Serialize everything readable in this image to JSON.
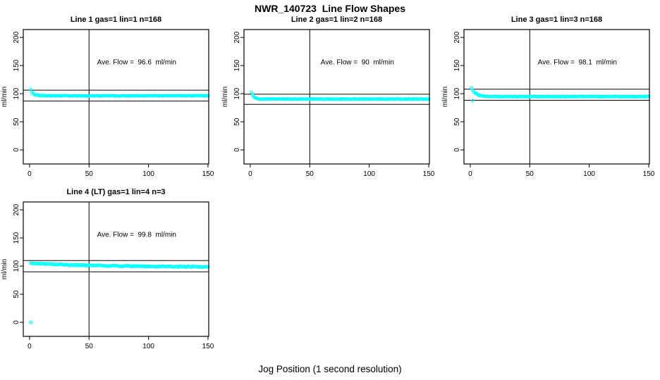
{
  "title": "NWR_140723  Line Flow Shapes",
  "xlabel": "Jog Position (1 second resolution)",
  "colors": {
    "points": "#00FFFF",
    "axis": "#000000",
    "background": "#FFFFFF"
  },
  "axes": {
    "x_ticks": [
      0,
      50,
      100,
      150
    ],
    "y_ticks": [
      0,
      50,
      100,
      150,
      200
    ],
    "xlim": [
      -5.3,
      150.6
    ],
    "ylim": [
      -25,
      214
    ],
    "grid": false
  },
  "chart_data": [
    {
      "type": "scatter",
      "title": "Line 1 gas=1 lin=1 n=168",
      "ylabel": "ml/min",
      "annotation": "Ave. Flow =  96.6  ml/min",
      "ave_flow": 96.6,
      "n": 168,
      "ref_line_upper": 106.3,
      "ref_line_lower": 86.9,
      "vline_x": 50,
      "profile": {
        "start": 107,
        "settle": 96.2,
        "tau": 2.2,
        "noise": 0.5,
        "x_start": 1,
        "x_end": 150,
        "seed": 11
      },
      "sample_points": [
        [
          1,
          107
        ],
        [
          3,
          101
        ],
        [
          5,
          98.4
        ],
        [
          10,
          96.5
        ],
        [
          25,
          96.2
        ],
        [
          50,
          96.2
        ],
        [
          75,
          96.2
        ],
        [
          100,
          96.1
        ],
        [
          125,
          96.2
        ],
        [
          150,
          96.2
        ]
      ],
      "outliers": []
    },
    {
      "type": "scatter",
      "title": "Line 2 gas=1 lin=2 n=168",
      "ylabel": "ml/min",
      "annotation": "Ave. Flow =  90  ml/min",
      "ave_flow": 90,
      "n": 168,
      "ref_line_upper": 99,
      "ref_line_lower": 81,
      "vline_x": 50,
      "profile": {
        "start": 102,
        "settle": 90.4,
        "tau": 1.8,
        "noise": 0.5,
        "x_start": 1,
        "x_end": 150,
        "seed": 22
      },
      "sample_points": [
        [
          1,
          102
        ],
        [
          3,
          94.2
        ],
        [
          5,
          92
        ],
        [
          10,
          90.5
        ],
        [
          25,
          90.4
        ],
        [
          50,
          90.4
        ],
        [
          75,
          90.4
        ],
        [
          100,
          90.4
        ],
        [
          125,
          90.4
        ],
        [
          150,
          90.4
        ]
      ],
      "outliers": []
    },
    {
      "type": "scatter",
      "title": "Line 3 gas=1 lin=3 n=168",
      "ylabel": "ml/min",
      "annotation": "Ave. Flow =  98.1  ml/min",
      "ave_flow": 98.1,
      "n": 168,
      "ref_line_upper": 107.9,
      "ref_line_lower": 88.3,
      "vline_x": 50,
      "profile": {
        "start": 110,
        "settle": 94.8,
        "tau": 3.5,
        "noise": 0.5,
        "x_start": 1,
        "x_end": 150,
        "seed": 33
      },
      "sample_points": [
        [
          1,
          110
        ],
        [
          3,
          103.4
        ],
        [
          5,
          99.3
        ],
        [
          10,
          96
        ],
        [
          25,
          94.9
        ],
        [
          50,
          94.8
        ],
        [
          75,
          94.8
        ],
        [
          100,
          94.8
        ],
        [
          125,
          94.8
        ],
        [
          150,
          94.8
        ]
      ],
      "outliers": [
        [
          2,
          87.5
        ]
      ]
    },
    {
      "type": "scatter",
      "title": "Line 4 (LT) gas=1 lin=4 n=3",
      "ylabel": "ml/min",
      "annotation": "Ave. Flow =  99.8  ml/min",
      "ave_flow": 99.8,
      "n": 3,
      "ref_line_upper": 109.8,
      "ref_line_lower": 89.8,
      "vline_x": 50,
      "profile": {
        "start": 105.5,
        "settle": 98.2,
        "tau": 55,
        "noise": 0.9,
        "x_start": 1,
        "x_end": 150,
        "seed": 44
      },
      "sample_points": [
        [
          1,
          105.5
        ],
        [
          3,
          105.2
        ],
        [
          5,
          105
        ],
        [
          10,
          104.4
        ],
        [
          25,
          102.9
        ],
        [
          50,
          100.9
        ],
        [
          75,
          99.7
        ],
        [
          100,
          99
        ],
        [
          125,
          98.6
        ],
        [
          150,
          98.4
        ]
      ],
      "outliers": [
        [
          1,
          0
        ]
      ]
    }
  ]
}
